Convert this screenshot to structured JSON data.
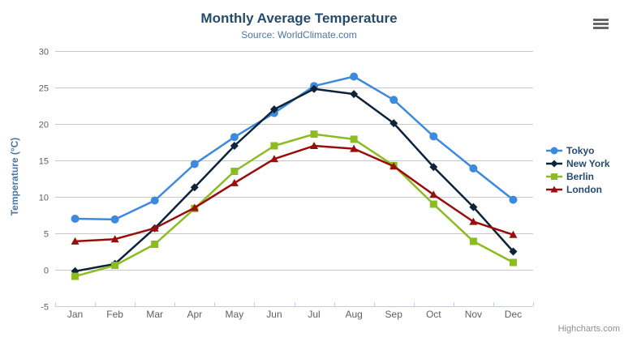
{
  "ui": {
    "credits": "Highcharts.com",
    "menu_icon": "hamburger-icon"
  },
  "colors": {
    "background": "#ffffff",
    "grid": "#c9c9c9",
    "axis_line": "#c0d0e0",
    "tick_label": "#606060",
    "title": "#274b6d",
    "subtitle": "#4d759e",
    "yaxis_title": "#4a77a8",
    "legend_text": "#274b6d",
    "credits": "#8f8f8f",
    "menu_icon": "#666666"
  },
  "chart_data": {
    "type": "line",
    "title": "Monthly Average Temperature",
    "subtitle": "Source: WorldClimate.com",
    "xlabel": "",
    "ylabel": "Temperature (°C)",
    "ylim": [
      -5,
      30
    ],
    "yticks": [
      -5,
      0,
      5,
      10,
      15,
      20,
      25,
      30
    ],
    "grid": true,
    "legend_position": "right-middle",
    "categories": [
      "Jan",
      "Feb",
      "Mar",
      "Apr",
      "May",
      "Jun",
      "Jul",
      "Aug",
      "Sep",
      "Oct",
      "Nov",
      "Dec"
    ],
    "series": [
      {
        "name": "Tokyo",
        "color": "#3c8ae0",
        "marker": "circle",
        "values": [
          7.0,
          6.9,
          9.5,
          14.5,
          18.2,
          21.5,
          25.2,
          26.5,
          23.3,
          18.3,
          13.9,
          9.6
        ]
      },
      {
        "name": "New York",
        "color": "#0d233a",
        "marker": "diamond",
        "values": [
          -0.2,
          0.8,
          5.7,
          11.3,
          17.0,
          22.0,
          24.8,
          24.1,
          20.1,
          14.1,
          8.6,
          2.5
        ]
      },
      {
        "name": "Berlin",
        "color": "#8bbc21",
        "marker": "square",
        "values": [
          -0.9,
          0.6,
          3.5,
          8.4,
          13.5,
          17.0,
          18.6,
          17.9,
          14.3,
          9.0,
          3.9,
          1.0
        ]
      },
      {
        "name": "London",
        "color": "#9a0d0d",
        "marker": "triangle",
        "values": [
          3.9,
          4.2,
          5.7,
          8.5,
          11.9,
          15.2,
          17.0,
          16.6,
          14.2,
          10.3,
          6.6,
          4.8
        ]
      }
    ]
  }
}
